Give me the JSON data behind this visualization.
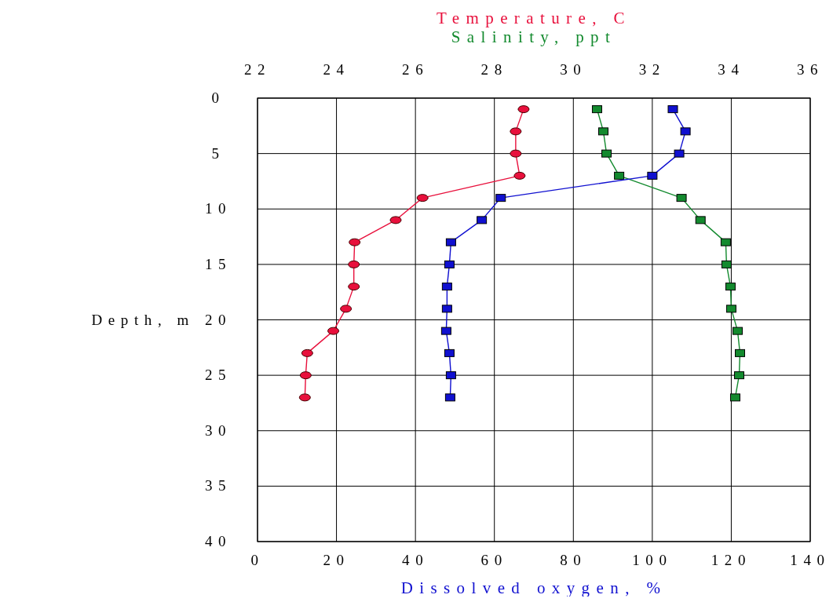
{
  "chart_data": {
    "type": "line",
    "xlabel": "Dissolved oxygen, %",
    "ylabel": "Depth, m",
    "xlim": [
      0,
      140
    ],
    "xticks": [
      0,
      20,
      40,
      60,
      80,
      100,
      120,
      140
    ],
    "x2lim": [
      22,
      36
    ],
    "x2ticks": [
      22,
      24,
      26,
      28,
      30,
      32,
      34,
      36
    ],
    "ylim": [
      40,
      0
    ],
    "yticks": [
      0,
      5,
      10,
      15,
      20,
      25,
      30,
      35,
      40
    ],
    "grid": true,
    "legend": "top",
    "line_style": "solid",
    "series": [
      {
        "name": "Temperature, C",
        "color": "#e8103c",
        "axis": "x2",
        "marker": "circle",
        "x": [
          28.74,
          28.54,
          28.54,
          28.64,
          26.18,
          25.5,
          24.46,
          24.44,
          24.44,
          24.24,
          23.92,
          23.26,
          23.22,
          23.2
        ],
        "values": [
          1,
          3,
          5,
          7,
          9,
          11,
          13,
          15,
          17,
          19,
          21,
          23,
          25,
          27
        ]
      },
      {
        "name": "Salinity, ppt",
        "color": "#138a2e",
        "axis": "x2",
        "marker": "square",
        "x": [
          30.6,
          30.76,
          30.84,
          31.16,
          32.74,
          33.22,
          33.86,
          33.88,
          33.98,
          34.0,
          34.16,
          34.22,
          34.2,
          34.1
        ],
        "values": [
          1,
          3,
          5,
          7,
          9,
          11,
          13,
          15,
          17,
          19,
          21,
          23,
          25,
          27
        ]
      },
      {
        "color": "#1010d0",
        "marker": "square",
        "x": [
          105.2,
          108.4,
          106.8,
          100,
          61.6,
          56.8,
          49,
          48.6,
          48,
          48,
          47.8,
          48.6,
          49,
          48.8
        ],
        "values": [
          1,
          3,
          5,
          7,
          9,
          11,
          13,
          15,
          17,
          19,
          21,
          23,
          25,
          27
        ]
      }
    ]
  }
}
